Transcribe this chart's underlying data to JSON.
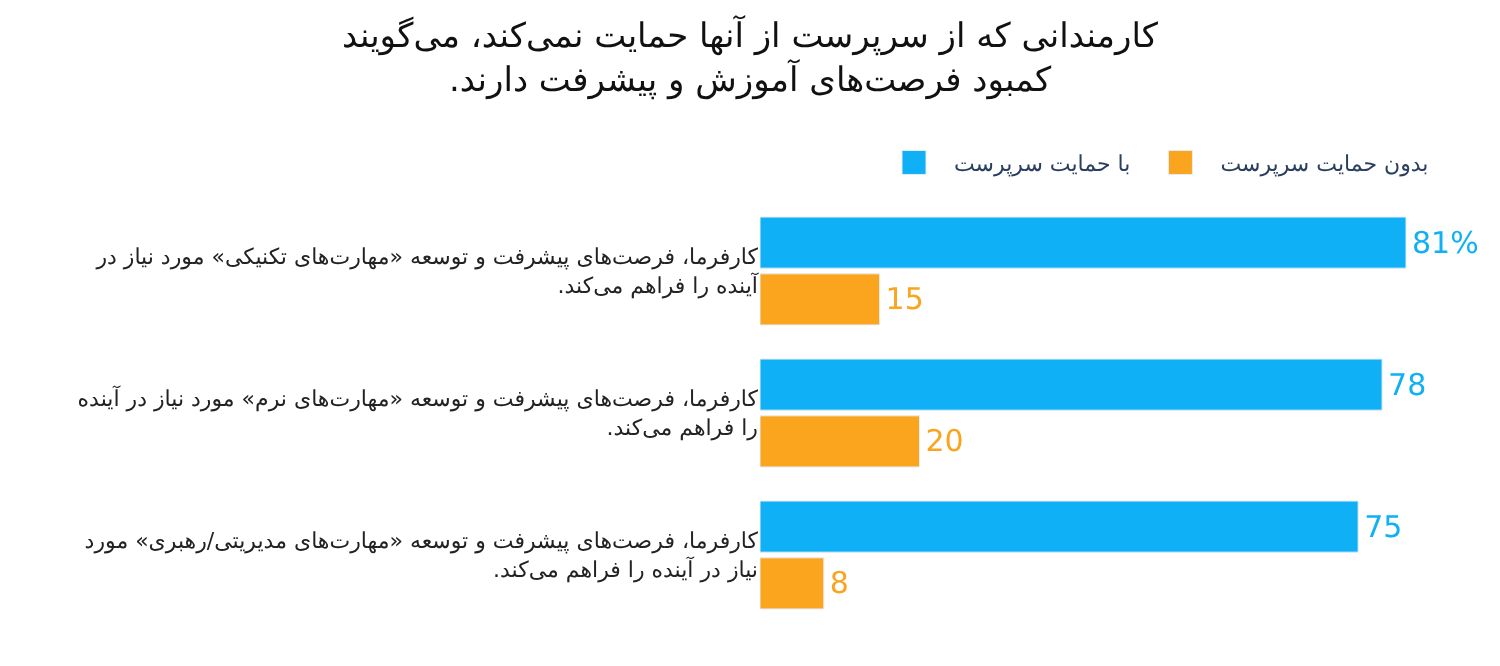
{
  "chart_data": {
    "type": "bar",
    "orientation": "horizontal",
    "title": "کارمندانی که از سرپرست از آنها حمایت نمی‌کند، می‌گویند\nکمبود فرصت‌های آموزش و پیشرفت دارند.",
    "categories": [
      "کارفرما، فرصت‌های پیشرفت و توسعه «مهارت‌های تکنیکی» مورد نیاز در\nآینده را فراهم می‌کند.",
      "کارفرما، فرصت‌های پیشرفت و توسعه «مهارت‌های نرم» مورد نیاز در آینده\nرا فراهم می‌کند.",
      "کارفرما، فرصت‌های پیشرفت و توسعه «مهارت‌های مدیریتی/رهبری» مورد\nنیاز در آینده را فراهم می‌کند."
    ],
    "series": [
      {
        "name": "با حمایت سرپرست",
        "color": "#0fb0f5",
        "values": [
          81,
          78,
          75
        ],
        "value_labels": [
          "81%",
          "78",
          "75"
        ]
      },
      {
        "name": "بدون حمایت سرپرست",
        "color": "#fba51f",
        "values": [
          15,
          20,
          8
        ],
        "value_labels": [
          "15",
          "20",
          "8"
        ]
      }
    ],
    "tick_labels": "y",
    "legend": "top right"
  }
}
